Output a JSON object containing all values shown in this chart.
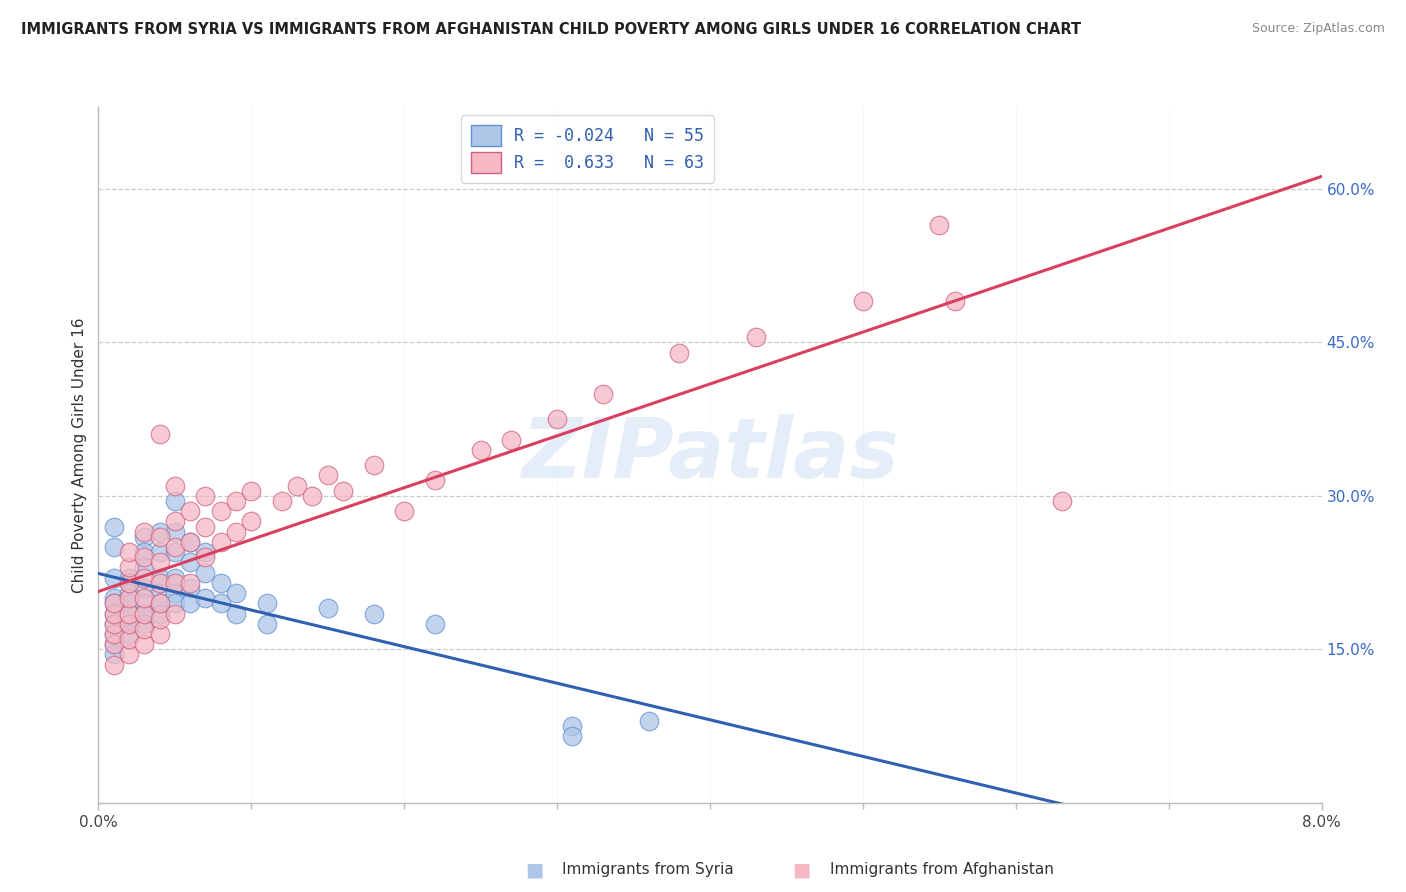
{
  "title": "IMMIGRANTS FROM SYRIA VS IMMIGRANTS FROM AFGHANISTAN CHILD POVERTY AMONG GIRLS UNDER 16 CORRELATION CHART",
  "source": "Source: ZipAtlas.com",
  "ylabel": "Child Poverty Among Girls Under 16",
  "legend": {
    "syria_label": "Immigrants from Syria",
    "syria_R": -0.024,
    "syria_N": 55,
    "afghanistan_label": "Immigrants from Afghanistan",
    "afghanistan_R": 0.633,
    "afghanistan_N": 63
  },
  "background_color": "#ffffff",
  "watermark_text": "ZIPatlas",
  "syria_color": "#aec6e8",
  "afghanistan_color": "#f5b8c4",
  "syria_line_color": "#3060b0",
  "afghanistan_line_color": "#d94060",
  "syria_scatter": [
    [
      0.001,
      0.2
    ],
    [
      0.001,
      0.22
    ],
    [
      0.001,
      0.25
    ],
    [
      0.001,
      0.27
    ],
    [
      0.001,
      0.195
    ],
    [
      0.001,
      0.185
    ],
    [
      0.001,
      0.175
    ],
    [
      0.001,
      0.165
    ],
    [
      0.001,
      0.155
    ],
    [
      0.001,
      0.145
    ],
    [
      0.002,
      0.22
    ],
    [
      0.002,
      0.215
    ],
    [
      0.002,
      0.205
    ],
    [
      0.002,
      0.195
    ],
    [
      0.002,
      0.185
    ],
    [
      0.002,
      0.175
    ],
    [
      0.002,
      0.165
    ],
    [
      0.003,
      0.26
    ],
    [
      0.003,
      0.245
    ],
    [
      0.003,
      0.23
    ],
    [
      0.003,
      0.21
    ],
    [
      0.003,
      0.195
    ],
    [
      0.003,
      0.185
    ],
    [
      0.003,
      0.175
    ],
    [
      0.004,
      0.265
    ],
    [
      0.004,
      0.245
    ],
    [
      0.004,
      0.22
    ],
    [
      0.004,
      0.205
    ],
    [
      0.004,
      0.195
    ],
    [
      0.004,
      0.185
    ],
    [
      0.005,
      0.295
    ],
    [
      0.005,
      0.265
    ],
    [
      0.005,
      0.245
    ],
    [
      0.005,
      0.22
    ],
    [
      0.005,
      0.205
    ],
    [
      0.005,
      0.195
    ],
    [
      0.006,
      0.255
    ],
    [
      0.006,
      0.235
    ],
    [
      0.006,
      0.21
    ],
    [
      0.006,
      0.195
    ],
    [
      0.007,
      0.245
    ],
    [
      0.007,
      0.225
    ],
    [
      0.007,
      0.2
    ],
    [
      0.008,
      0.215
    ],
    [
      0.008,
      0.195
    ],
    [
      0.009,
      0.205
    ],
    [
      0.009,
      0.185
    ],
    [
      0.011,
      0.195
    ],
    [
      0.011,
      0.175
    ],
    [
      0.015,
      0.19
    ],
    [
      0.018,
      0.185
    ],
    [
      0.022,
      0.175
    ],
    [
      0.031,
      0.075
    ],
    [
      0.031,
      0.065
    ],
    [
      0.036,
      0.08
    ]
  ],
  "afghanistan_scatter": [
    [
      0.001,
      0.135
    ],
    [
      0.001,
      0.155
    ],
    [
      0.001,
      0.165
    ],
    [
      0.001,
      0.175
    ],
    [
      0.001,
      0.185
    ],
    [
      0.001,
      0.195
    ],
    [
      0.002,
      0.145
    ],
    [
      0.002,
      0.16
    ],
    [
      0.002,
      0.175
    ],
    [
      0.002,
      0.185
    ],
    [
      0.002,
      0.2
    ],
    [
      0.002,
      0.215
    ],
    [
      0.002,
      0.23
    ],
    [
      0.002,
      0.245
    ],
    [
      0.003,
      0.155
    ],
    [
      0.003,
      0.17
    ],
    [
      0.003,
      0.185
    ],
    [
      0.003,
      0.2
    ],
    [
      0.003,
      0.22
    ],
    [
      0.003,
      0.24
    ],
    [
      0.003,
      0.265
    ],
    [
      0.004,
      0.165
    ],
    [
      0.004,
      0.18
    ],
    [
      0.004,
      0.195
    ],
    [
      0.004,
      0.215
    ],
    [
      0.004,
      0.235
    ],
    [
      0.004,
      0.26
    ],
    [
      0.004,
      0.36
    ],
    [
      0.005,
      0.185
    ],
    [
      0.005,
      0.215
    ],
    [
      0.005,
      0.25
    ],
    [
      0.005,
      0.275
    ],
    [
      0.005,
      0.31
    ],
    [
      0.006,
      0.215
    ],
    [
      0.006,
      0.255
    ],
    [
      0.006,
      0.285
    ],
    [
      0.007,
      0.24
    ],
    [
      0.007,
      0.27
    ],
    [
      0.007,
      0.3
    ],
    [
      0.008,
      0.255
    ],
    [
      0.008,
      0.285
    ],
    [
      0.009,
      0.265
    ],
    [
      0.009,
      0.295
    ],
    [
      0.01,
      0.275
    ],
    [
      0.01,
      0.305
    ],
    [
      0.012,
      0.295
    ],
    [
      0.013,
      0.31
    ],
    [
      0.014,
      0.3
    ],
    [
      0.015,
      0.32
    ],
    [
      0.016,
      0.305
    ],
    [
      0.018,
      0.33
    ],
    [
      0.02,
      0.285
    ],
    [
      0.022,
      0.315
    ],
    [
      0.025,
      0.345
    ],
    [
      0.027,
      0.355
    ],
    [
      0.03,
      0.375
    ],
    [
      0.033,
      0.4
    ],
    [
      0.038,
      0.44
    ],
    [
      0.043,
      0.455
    ],
    [
      0.05,
      0.49
    ],
    [
      0.055,
      0.565
    ],
    [
      0.056,
      0.49
    ],
    [
      0.063,
      0.295
    ]
  ],
  "xlim": [
    0.0,
    0.08
  ],
  "ylim": [
    0.0,
    0.68
  ],
  "ygridlines": [
    0.15,
    0.3,
    0.45,
    0.6
  ],
  "ytick_labels": [
    "15.0%",
    "30.0%",
    "45.0%",
    "60.0%"
  ],
  "ytick_values": [
    0.15,
    0.3,
    0.45,
    0.6
  ],
  "xtick_positions": [
    0.0,
    0.08
  ],
  "xtick_labels": [
    "0.0%",
    "8.0%"
  ]
}
